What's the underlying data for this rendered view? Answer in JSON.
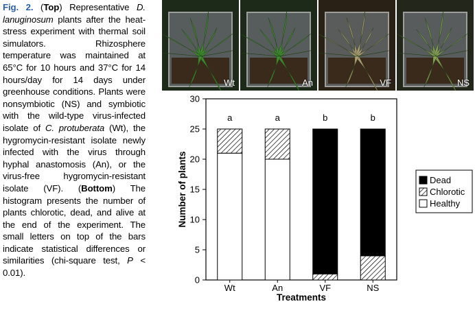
{
  "caption": {
    "fig": "Fig. 2.",
    "p1": " (",
    "top": "Top",
    "p2": ") Representative ",
    "species": "D. lanuginosum",
    "p3": " plants after the heat-stress experiment with thermal soil simulators. Rhizosphere temperature was maintained at 65°C for 10 hours and 37°C for 14 hours/day for 14 days under greenhouse conditions. Plants were nonsymbiotic (NS) and symbiotic with the wild-type virus-infected isolate of ",
    "fungus": "C. protuberata",
    "p4": " (Wt), the hygromycin-resistant isolate newly infected with the virus through hyphal anastomosis (An), or the virus-free hygromycin-resistant isolate (VF). (",
    "bottom": "Bottom",
    "p5": ") The histogram presents the number of plants chlorotic, dead, and alive at the end of the experiment. The small letters on top of the bars indicate statistical differences or similarities (chi-square test, ",
    "pval": "P",
    "p6": " < 0.01)."
  },
  "photos": [
    {
      "label": "Wt",
      "leaf": "#3f8f2e",
      "bg": "#1d2a1a"
    },
    {
      "label": "An",
      "leaf": "#3f8f2e",
      "bg": "#1d2a1a"
    },
    {
      "label": "VF",
      "leaf": "#b9a27a",
      "bg": "#2a2116"
    },
    {
      "label": "NS",
      "leaf": "#8da55a",
      "bg": "#23261a"
    }
  ],
  "chart_data": {
    "type": "bar",
    "stacked": true,
    "categories": [
      "Wt",
      "An",
      "VF",
      "NS"
    ],
    "series": [
      {
        "name": "Healthy",
        "values": [
          21,
          20,
          0,
          0
        ]
      },
      {
        "name": "Chlorotic",
        "values": [
          4,
          5,
          1,
          4
        ]
      },
      {
        "name": "Dead",
        "values": [
          0,
          0,
          24,
          21
        ]
      }
    ],
    "letters": [
      "a",
      "a",
      "b",
      "b"
    ],
    "xlabel": "Treatments",
    "ylabel": "Number of plants",
    "ylim": [
      0,
      30
    ],
    "yticks": [
      0,
      5,
      10,
      15,
      20,
      25,
      30
    ],
    "legend": [
      "Dead",
      "Chlorotic",
      "Healthy"
    ],
    "legend_position": "right"
  }
}
